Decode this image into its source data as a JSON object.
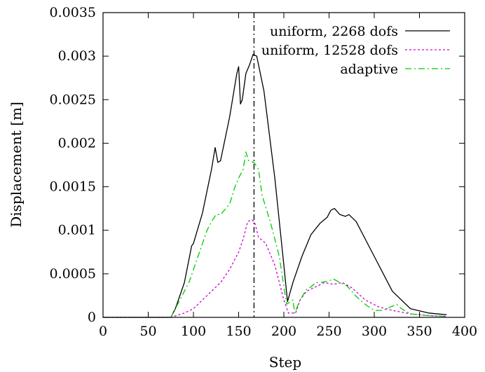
{
  "chart_data": {
    "type": "line",
    "xlabel": "Step",
    "ylabel": "Displacement [m]",
    "xlim": [
      0,
      400
    ],
    "ylim": [
      0,
      0.0035
    ],
    "xticks": [
      0,
      50,
      100,
      150,
      200,
      250,
      300,
      350,
      400
    ],
    "xtick_labels": [
      "0",
      "50",
      "100",
      "150",
      "200",
      "250",
      "300",
      "350",
      "400"
    ],
    "yticks": [
      0,
      0.0005,
      0.001,
      0.0015,
      0.002,
      0.0025,
      0.003,
      0.0035
    ],
    "ytick_labels": [
      "0",
      "0.0005",
      "0.001",
      "0.0015",
      "0.002",
      "0.0025",
      "0.003",
      "0.0035"
    ],
    "grid": false,
    "legend_position": "top-right",
    "vline": {
      "x": 167,
      "style": "dash-dot",
      "color": "#000000"
    },
    "series": [
      {
        "name": "uniform, 2268 dofs",
        "color": "#000000",
        "dash": "solid",
        "points": [
          [
            0,
            0
          ],
          [
            75,
            0
          ],
          [
            80,
            0.0001
          ],
          [
            90,
            0.0004
          ],
          [
            98,
            0.00082
          ],
          [
            100,
            0.00085
          ],
          [
            110,
            0.0012
          ],
          [
            120,
            0.0017
          ],
          [
            124,
            0.00195
          ],
          [
            127,
            0.00178
          ],
          [
            130,
            0.0018
          ],
          [
            140,
            0.0023
          ],
          [
            148,
            0.0028
          ],
          [
            150,
            0.00288
          ],
          [
            152,
            0.00245
          ],
          [
            154,
            0.0025
          ],
          [
            158,
            0.0028
          ],
          [
            162,
            0.0029
          ],
          [
            166,
            0.00302
          ],
          [
            170,
            0.003
          ],
          [
            178,
            0.0026
          ],
          [
            190,
            0.0016
          ],
          [
            200,
            0.0006
          ],
          [
            204,
            0.00018
          ],
          [
            210,
            0.0004
          ],
          [
            220,
            0.0007
          ],
          [
            230,
            0.00095
          ],
          [
            240,
            0.00108
          ],
          [
            248,
            0.00115
          ],
          [
            252,
            0.00123
          ],
          [
            256,
            0.00125
          ],
          [
            262,
            0.00118
          ],
          [
            268,
            0.00116
          ],
          [
            272,
            0.00118
          ],
          [
            280,
            0.0011
          ],
          [
            300,
            0.0007
          ],
          [
            320,
            0.0003
          ],
          [
            340,
            0.0001
          ],
          [
            360,
            5e-05
          ],
          [
            380,
            3e-05
          ]
        ]
      },
      {
        "name": "uniform, 12528 dofs",
        "color": "#d000d0",
        "dash": "dotted",
        "points": [
          [
            0,
            0
          ],
          [
            75,
            0
          ],
          [
            90,
            5e-05
          ],
          [
            100,
            0.0001
          ],
          [
            110,
            0.0002
          ],
          [
            120,
            0.0003
          ],
          [
            130,
            0.0004
          ],
          [
            140,
            0.00055
          ],
          [
            150,
            0.00075
          ],
          [
            155,
            0.0009
          ],
          [
            160,
            0.0011
          ],
          [
            165,
            0.00112
          ],
          [
            168,
            0.00108
          ],
          [
            172,
            0.00092
          ],
          [
            180,
            0.00085
          ],
          [
            190,
            0.0006
          ],
          [
            200,
            0.0002
          ],
          [
            205,
            5e-05
          ],
          [
            210,
            5e-05
          ],
          [
            213,
            5e-05
          ],
          [
            218,
            0.0002
          ],
          [
            225,
            0.0003
          ],
          [
            235,
            0.00035
          ],
          [
            245,
            0.0004
          ],
          [
            255,
            0.00038
          ],
          [
            265,
            0.0004
          ],
          [
            275,
            0.00034
          ],
          [
            290,
            0.0002
          ],
          [
            305,
            0.00012
          ],
          [
            320,
            8e-05
          ],
          [
            340,
            4e-05
          ],
          [
            360,
            2e-05
          ],
          [
            380,
            1e-05
          ]
        ]
      },
      {
        "name": "adaptive",
        "color": "#00cc00",
        "dash": "dashdot",
        "points": [
          [
            0,
            0
          ],
          [
            75,
            0
          ],
          [
            85,
            0.0002
          ],
          [
            95,
            0.0004
          ],
          [
            105,
            0.0007
          ],
          [
            115,
            0.001
          ],
          [
            120,
            0.0011
          ],
          [
            125,
            0.00118
          ],
          [
            130,
            0.00118
          ],
          [
            140,
            0.0013
          ],
          [
            146,
            0.0015
          ],
          [
            150,
            0.0016
          ],
          [
            155,
            0.0017
          ],
          [
            158,
            0.0019
          ],
          [
            161,
            0.0018
          ],
          [
            167,
            0.00178
          ],
          [
            172,
            0.0017
          ],
          [
            176,
            0.0014
          ],
          [
            185,
            0.0011
          ],
          [
            195,
            0.0007
          ],
          [
            203,
            0.00015
          ],
          [
            210,
            0.0002
          ],
          [
            212,
            5e-05
          ],
          [
            218,
            0.0002
          ],
          [
            225,
            0.00032
          ],
          [
            230,
            0.00035
          ],
          [
            235,
            0.0004
          ],
          [
            240,
            0.0004
          ],
          [
            250,
            0.00042
          ],
          [
            255,
            0.00044
          ],
          [
            262,
            0.0004
          ],
          [
            270,
            0.00036
          ],
          [
            280,
            0.00024
          ],
          [
            290,
            0.00015
          ],
          [
            300,
            8e-05
          ],
          [
            310,
            8e-05
          ],
          [
            318,
            0.00012
          ],
          [
            325,
            0.00015
          ],
          [
            330,
            0.0001
          ],
          [
            340,
            4e-05
          ],
          [
            360,
            2e-05
          ],
          [
            380,
            1e-05
          ]
        ]
      }
    ]
  }
}
